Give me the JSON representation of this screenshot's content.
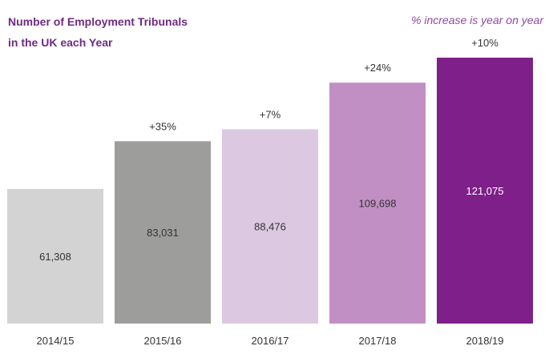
{
  "header": {
    "title_line1": "Number of Employment Tribunals",
    "title_line2": "in the UK each Year",
    "note": "% increase is year on year"
  },
  "chart_data": {
    "type": "bar",
    "title": "Number of Employment Tribunals in the UK each Year",
    "categories": [
      "2014/15",
      "2015/16",
      "2016/17",
      "2017/18",
      "2018/19"
    ],
    "values": [
      61308,
      83031,
      88476,
      109698,
      121075
    ],
    "value_labels": [
      "61,308",
      "83,031",
      "88,476",
      "109,698",
      "121,075"
    ],
    "changes": [
      "",
      "+35%",
      "+7%",
      "+24%",
      "+10%"
    ],
    "colors": [
      "#d3d3d3",
      "#9d9d9b",
      "#ddc8e2",
      "#c18fc4",
      "#7f1f8a"
    ],
    "label_colors": [
      "#333333",
      "#333333",
      "#333333",
      "#333333",
      "#ffffff"
    ],
    "ylim": [
      0,
      121075
    ],
    "grid": false,
    "legend": "none"
  }
}
